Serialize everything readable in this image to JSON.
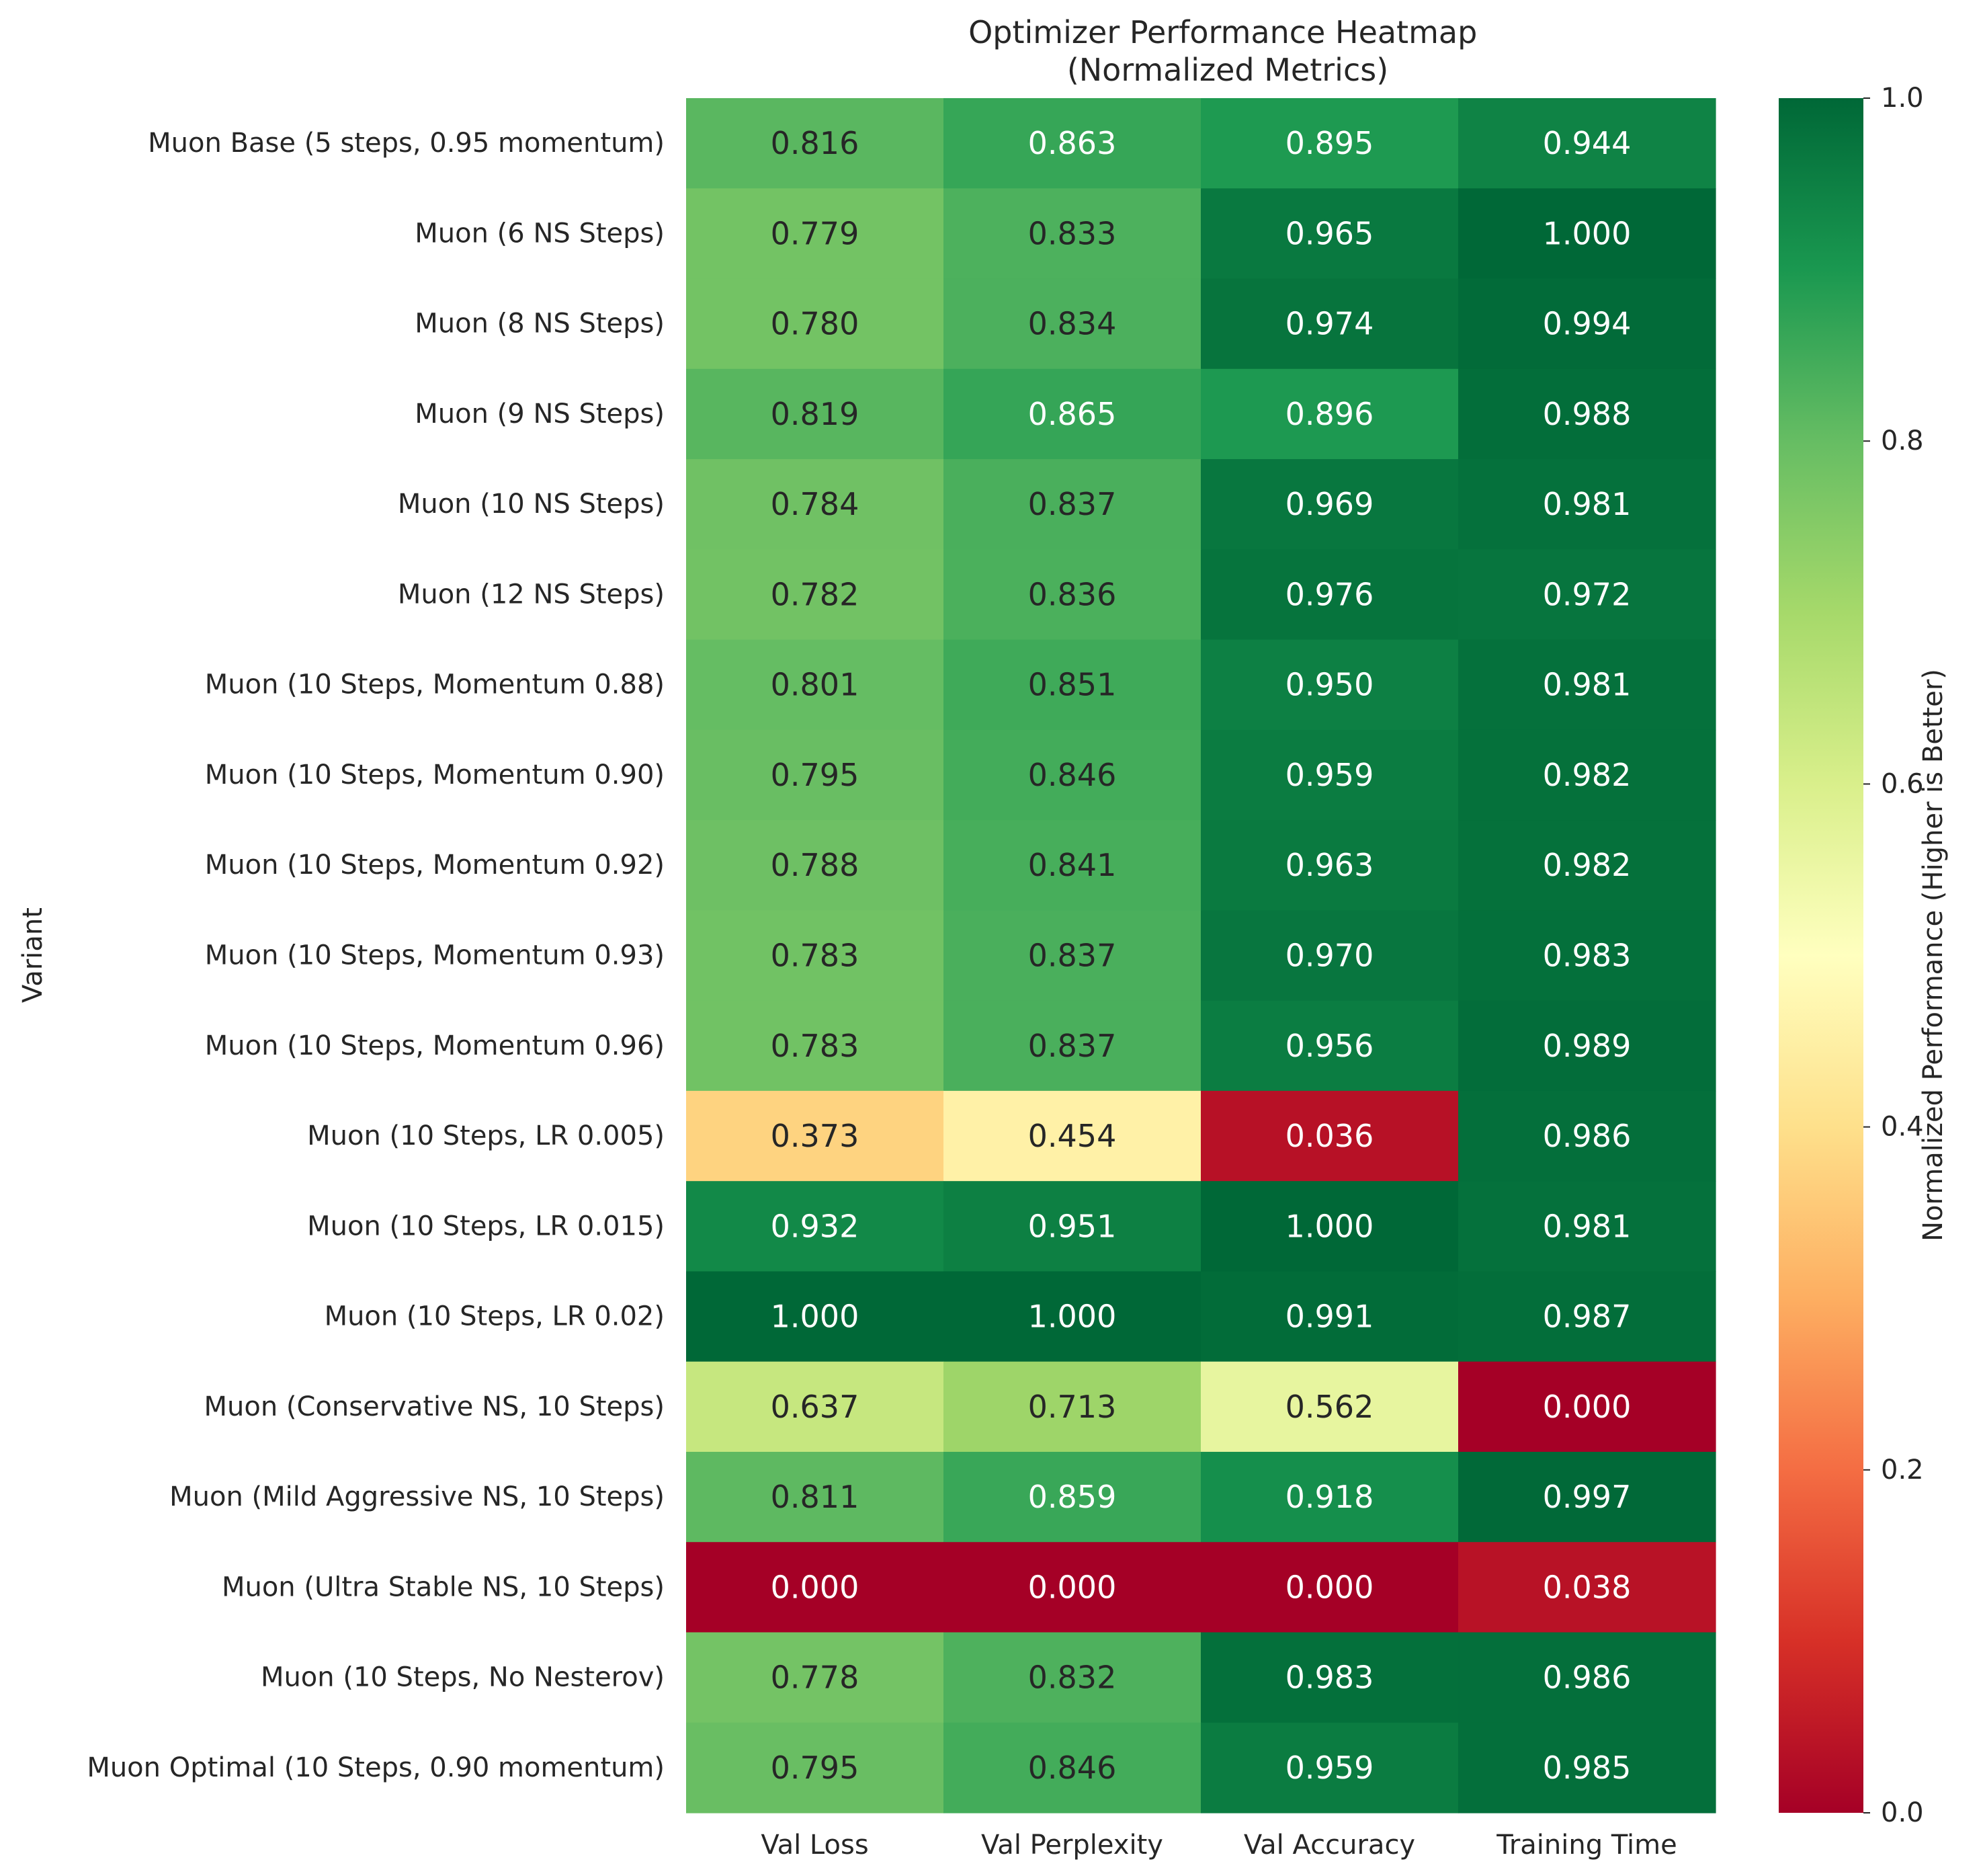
{
  "chart_data": {
    "type": "heatmap",
    "title": "Optimizer Performance Heatmap\n(Normalized Metrics)",
    "xlabel": "",
    "ylabel": "Variant",
    "colorbar_label": "Normalized Performance (Higher is Better)",
    "colormap": "RdYlGn",
    "vmin": 0,
    "vmax": 1,
    "colorbar_ticks": [
      "0.0",
      "0.2",
      "0.4",
      "0.6",
      "0.8",
      "1.0"
    ],
    "columns": [
      "Val Loss",
      "Val Perplexity",
      "Val Accuracy",
      "Training Time"
    ],
    "rows": [
      "Muon Base (5 steps, 0.95 momentum)",
      "Muon (6 NS Steps)",
      "Muon (8 NS Steps)",
      "Muon (9 NS Steps)",
      "Muon (10 NS Steps)",
      "Muon (12 NS Steps)",
      "Muon (10 Steps, Momentum 0.88)",
      "Muon (10 Steps, Momentum 0.90)",
      "Muon (10 Steps, Momentum 0.92)",
      "Muon (10 Steps, Momentum 0.93)",
      "Muon (10 Steps, Momentum 0.96)",
      "Muon (10 Steps, LR 0.005)",
      "Muon (10 Steps, LR 0.015)",
      "Muon (10 Steps, LR 0.02)",
      "Muon (Conservative NS, 10 Steps)",
      "Muon (Mild Aggressive NS, 10 Steps)",
      "Muon (Ultra Stable NS, 10 Steps)",
      "Muon (10 Steps, No Nesterov)",
      "Muon Optimal (10 Steps, 0.90 momentum)"
    ],
    "values": [
      [
        0.816,
        0.863,
        0.895,
        0.944
      ],
      [
        0.779,
        0.833,
        0.965,
        1.0
      ],
      [
        0.78,
        0.834,
        0.974,
        0.994
      ],
      [
        0.819,
        0.865,
        0.896,
        0.988
      ],
      [
        0.784,
        0.837,
        0.969,
        0.981
      ],
      [
        0.782,
        0.836,
        0.976,
        0.972
      ],
      [
        0.801,
        0.851,
        0.95,
        0.981
      ],
      [
        0.795,
        0.846,
        0.959,
        0.982
      ],
      [
        0.788,
        0.841,
        0.963,
        0.982
      ],
      [
        0.783,
        0.837,
        0.97,
        0.983
      ],
      [
        0.783,
        0.837,
        0.956,
        0.989
      ],
      [
        0.373,
        0.454,
        0.036,
        0.986
      ],
      [
        0.932,
        0.951,
        1.0,
        0.981
      ],
      [
        1.0,
        1.0,
        0.991,
        0.987
      ],
      [
        0.637,
        0.713,
        0.562,
        0.0
      ],
      [
        0.811,
        0.859,
        0.918,
        0.997
      ],
      [
        0.0,
        0.0,
        0.0,
        0.038
      ],
      [
        0.778,
        0.832,
        0.983,
        0.986
      ],
      [
        0.795,
        0.846,
        0.959,
        0.985
      ]
    ]
  }
}
